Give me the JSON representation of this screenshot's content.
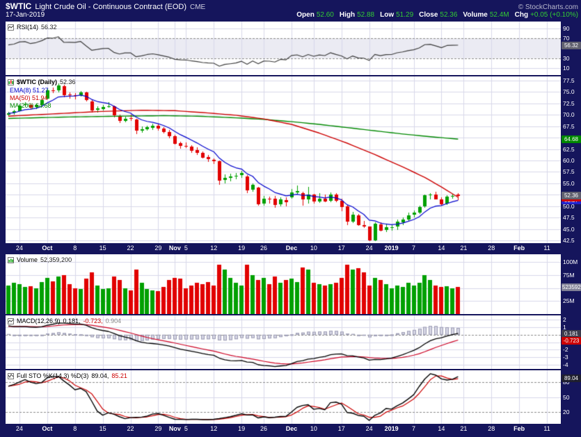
{
  "header": {
    "symbol": "$WTIC",
    "title": "Light Crude Oil - Continuous Contract (EOD)",
    "exchange": "CME",
    "copyright": "© StockCharts.com",
    "date": "17-Jan-2019",
    "quote": {
      "open_label": "Open",
      "open": "52.60",
      "high_label": "High",
      "high": "52.88",
      "low_label": "Low",
      "low": "51.29",
      "close_label": "Close",
      "close": "52.36",
      "volume_label": "Volume",
      "volume": "52.4M",
      "chg_label": "Chg",
      "chg": "+0.05 (+0.10%)"
    }
  },
  "legends": {
    "rsi": {
      "name": "RSI(14)",
      "value": "56.32"
    },
    "price": {
      "symbol": "$WTIC (Daily)",
      "value": "52.36",
      "ema": "EMA(8) 51.27",
      "ma50": "MA(50) 51.94",
      "ma200": "MA(200) 64.68"
    },
    "volume": {
      "name": "Volume",
      "value": "52,359,200"
    },
    "macd": {
      "name": "MACD(12,26,9)",
      "v1": "0.181,",
      "v2": "-0.723,",
      "v3": "0.904"
    },
    "stoch": {
      "name": "Full STO %K(14,3) %D(3)",
      "v1": "89.04,",
      "v2": "85.21"
    }
  },
  "chart_data": {
    "type": "candlestick-multi-panel",
    "title": "$WTIC Light Crude Oil - Continuous Contract (EOD) CME",
    "x_slots": 100,
    "x_ticks": [
      {
        "i": 2,
        "label": "24"
      },
      {
        "i": 7,
        "label": "Oct",
        "bold": true
      },
      {
        "i": 12,
        "label": "8"
      },
      {
        "i": 17,
        "label": "15"
      },
      {
        "i": 22,
        "label": "22"
      },
      {
        "i": 27,
        "label": "29"
      },
      {
        "i": 30,
        "label": "Nov",
        "bold": true
      },
      {
        "i": 32,
        "label": "5"
      },
      {
        "i": 37,
        "label": "12"
      },
      {
        "i": 42,
        "label": "19"
      },
      {
        "i": 46,
        "label": "26"
      },
      {
        "i": 51,
        "label": "Dec",
        "bold": true
      },
      {
        "i": 55,
        "label": "10"
      },
      {
        "i": 60,
        "label": "17"
      },
      {
        "i": 65,
        "label": "24"
      },
      {
        "i": 69,
        "label": "2019",
        "bold": true
      },
      {
        "i": 73,
        "label": "7"
      },
      {
        "i": 78,
        "label": "14"
      },
      {
        "i": 82,
        "label": "21"
      },
      {
        "i": 87,
        "label": "28"
      },
      {
        "i": 92,
        "label": "Feb",
        "bold": true
      },
      {
        "i": 97,
        "label": "11"
      }
    ],
    "panels": {
      "rsi": {
        "range": [
          0,
          100
        ],
        "pad": 3,
        "solid": [
          90,
          10
        ],
        "dashed": [
          70,
          30
        ],
        "band": [
          30,
          70
        ],
        "axis_v": [
          90,
          70,
          30,
          10
        ],
        "axis": [
          "90",
          "70",
          "30",
          "10"
        ],
        "boxes": [
          {
            "v": 56.32,
            "text": "56.32",
            "bg": "#5f5f6e"
          }
        ],
        "seed": {
          "gain": 0.5,
          "loss": 0.38
        },
        "period": 14
      },
      "price": {
        "range": [
          41.9,
          78.4
        ],
        "grid_min": 42.5,
        "grid_step": 2.5,
        "grid_count": 15,
        "boxes": [
          {
            "v": 51.27,
            "text": "51.27",
            "bg": "#2222cc"
          },
          {
            "v": 51.94,
            "text": "51.94",
            "bg": "#cc0000"
          },
          {
            "v": 64.68,
            "text": "64.68",
            "bg": "#008800"
          },
          {
            "v": 52.36,
            "text": "52.36",
            "bg": "#5f5f6e"
          }
        ]
      },
      "volume": {
        "range": [
          0,
          115
        ],
        "solid": [
          100,
          75,
          50,
          25
        ],
        "axis_v": [
          100,
          75,
          50,
          25
        ],
        "axis": [
          "100M",
          "75M",
          "50M",
          "25M"
        ],
        "boxes": [
          {
            "v": 52.36,
            "text": "52359200",
            "bg": "#808096"
          }
        ]
      },
      "macd": {
        "range": [
          -4.6,
          2.6
        ],
        "solid": [
          2,
          1,
          -1,
          -2,
          -3,
          -4
        ],
        "dashed": [
          0
        ],
        "axis_v": [
          2,
          1,
          0,
          -1,
          -2,
          -3,
          -4
        ],
        "axis": [
          "2",
          "1",
          "0",
          "-1",
          "-2",
          "-3",
          "-4"
        ],
        "boxes": [
          {
            "v": 0.181,
            "text": "0.181",
            "bg": "#3c3c4c"
          },
          {
            "v": -0.723,
            "text": "-0.723",
            "bg": "#cc0000"
          }
        ],
        "params": {
          "fast": 12,
          "slow": 26,
          "signal": 9,
          "seed_fast": 71.3,
          "seed_slow": 69.9,
          "seed_signal": 1.1
        }
      },
      "stoch": {
        "range": [
          -4,
          104
        ],
        "solid": [
          50
        ],
        "dashed": [
          80,
          20
        ],
        "axis_v": [
          80,
          50,
          20
        ],
        "axis": [
          "80",
          "50",
          "20"
        ],
        "boxes": [
          {
            "v": 89.04,
            "text": "89.04",
            "bg": "#1f1f2f"
          }
        ],
        "params": {
          "k": 14,
          "k_smooth": 3,
          "d": 3
        }
      }
    },
    "overlays": {
      "ema_period": 8,
      "ma50_keypoints": [
        [
          0,
          69.7
        ],
        [
          8,
          70.2
        ],
        [
          16,
          70.7
        ],
        [
          24,
          71.0
        ],
        [
          30,
          70.9
        ],
        [
          36,
          70.4
        ],
        [
          41,
          69.9
        ],
        [
          46,
          69.1
        ],
        [
          51,
          67.9
        ],
        [
          56,
          66.0
        ],
        [
          61,
          63.8
        ],
        [
          66,
          61.3
        ],
        [
          71,
          58.6
        ],
        [
          75,
          56.3
        ],
        [
          78,
          54.2
        ],
        [
          81,
          51.94
        ]
      ],
      "ma200_keypoints": [
        [
          0,
          69.2
        ],
        [
          10,
          69.5
        ],
        [
          20,
          69.7
        ],
        [
          28,
          69.8
        ],
        [
          34,
          69.7
        ],
        [
          40,
          69.4
        ],
        [
          46,
          69.0
        ],
        [
          51,
          68.5
        ],
        [
          56,
          67.9
        ],
        [
          61,
          67.2
        ],
        [
          66,
          66.5
        ],
        [
          71,
          65.8
        ],
        [
          76,
          65.2
        ],
        [
          81,
          64.68
        ]
      ]
    },
    "colors": {
      "up": "#00a000",
      "down": "#e10000",
      "ema8": "#0000cc",
      "ma50": "#cc0000",
      "ma200": "#008800",
      "rsi": "#3c3c3c",
      "macd": "#000000",
      "signal": "#cc0022",
      "hist_fill": "#d6d6e4",
      "hist_stroke": "#9a9ab2",
      "grid": "#d7d7e9",
      "dash": "#888888",
      "band": "#ebebf3",
      "k_line": "#000000",
      "d_line": "#cc0000"
    },
    "candles": [
      [
        "2018-09-20",
        70.0,
        70.6,
        69.6,
        70.32,
        55
      ],
      [
        "2018-09-21",
        70.4,
        71.1,
        70.1,
        70.78,
        60
      ],
      [
        "2018-09-24",
        70.9,
        72.35,
        70.8,
        72.08,
        58
      ],
      [
        "2018-09-25",
        72.1,
        72.7,
        71.8,
        72.28,
        52
      ],
      [
        "2018-09-26",
        72.2,
        72.5,
        71.2,
        71.57,
        54
      ],
      [
        "2018-09-27",
        71.6,
        72.5,
        71.3,
        72.12,
        50
      ],
      [
        "2018-09-28",
        72.2,
        73.53,
        71.9,
        73.25,
        62
      ],
      [
        "2018-10-01",
        73.4,
        75.77,
        73.3,
        75.3,
        70
      ],
      [
        "2018-10-02",
        75.4,
        75.91,
        74.7,
        75.23,
        63
      ],
      [
        "2018-10-03",
        75.3,
        76.9,
        74.9,
        76.41,
        72
      ],
      [
        "2018-10-04",
        76.3,
        76.55,
        73.85,
        74.33,
        75
      ],
      [
        "2018-10-05",
        74.4,
        74.95,
        73.6,
        74.34,
        58
      ],
      [
        "2018-10-08",
        74.3,
        74.8,
        73.4,
        74.29,
        50
      ],
      [
        "2018-10-09",
        74.4,
        75.26,
        74.1,
        74.96,
        48
      ],
      [
        "2018-10-10",
        74.9,
        75.0,
        72.9,
        73.17,
        68
      ],
      [
        "2018-10-11",
        73.0,
        73.3,
        70.51,
        70.97,
        80
      ],
      [
        "2018-10-12",
        71.1,
        71.9,
        70.6,
        71.34,
        55
      ],
      [
        "2018-10-15",
        71.3,
        72.1,
        70.9,
        71.78,
        48
      ],
      [
        "2018-10-16",
        71.9,
        72.7,
        71.5,
        71.92,
        50
      ],
      [
        "2018-10-17",
        71.8,
        72.0,
        69.42,
        69.75,
        72
      ],
      [
        "2018-10-18",
        69.7,
        70.1,
        68.25,
        68.65,
        65
      ],
      [
        "2018-10-19",
        68.7,
        69.6,
        68.4,
        69.12,
        50
      ],
      [
        "2018-10-22",
        69.2,
        69.97,
        68.6,
        69.17,
        45
      ],
      [
        "2018-10-23",
        68.9,
        69.1,
        65.74,
        66.43,
        85
      ],
      [
        "2018-10-24",
        66.5,
        67.4,
        66.1,
        66.82,
        60
      ],
      [
        "2018-10-25",
        66.9,
        67.6,
        66.5,
        67.33,
        48
      ],
      [
        "2018-10-26",
        67.2,
        68.1,
        66.8,
        67.59,
        46
      ],
      [
        "2018-10-29",
        67.6,
        68.0,
        66.5,
        67.04,
        44
      ],
      [
        "2018-10-30",
        67.0,
        67.3,
        65.9,
        66.18,
        52
      ],
      [
        "2018-10-31",
        66.2,
        66.7,
        64.8,
        65.31,
        66
      ],
      [
        "2018-11-01",
        65.3,
        65.6,
        63.4,
        63.69,
        70
      ],
      [
        "2018-11-02",
        63.8,
        64.1,
        62.6,
        63.14,
        68
      ],
      [
        "2018-11-05",
        63.2,
        64.0,
        62.8,
        63.1,
        50
      ],
      [
        "2018-11-06",
        63.1,
        63.4,
        61.8,
        62.21,
        55
      ],
      [
        "2018-11-07",
        62.3,
        62.9,
        61.2,
        61.67,
        60
      ],
      [
        "2018-11-08",
        61.7,
        61.9,
        60.4,
        60.67,
        58
      ],
      [
        "2018-11-09",
        60.7,
        61.2,
        59.7,
        60.19,
        62
      ],
      [
        "2018-11-12",
        60.2,
        60.5,
        59.3,
        59.93,
        55
      ],
      [
        "2018-11-13",
        59.9,
        60.0,
        54.75,
        55.69,
        95
      ],
      [
        "2018-11-14",
        55.8,
        56.9,
        54.9,
        56.25,
        85
      ],
      [
        "2018-11-15",
        56.2,
        57.1,
        55.4,
        56.46,
        70
      ],
      [
        "2018-11-16",
        56.5,
        57.3,
        55.9,
        56.68,
        60
      ],
      [
        "2018-11-19",
        56.8,
        57.77,
        56.3,
        57.2,
        55
      ],
      [
        "2018-11-20",
        56.5,
        56.8,
        52.77,
        53.43,
        95
      ],
      [
        "2018-11-21",
        53.5,
        55.0,
        53.1,
        54.63,
        75
      ],
      [
        "2018-11-23",
        54.0,
        54.2,
        50.15,
        50.42,
        65
      ],
      [
        "2018-11-26",
        50.6,
        52.3,
        50.1,
        51.63,
        70
      ],
      [
        "2018-11-27",
        51.6,
        52.1,
        50.6,
        51.56,
        58
      ],
      [
        "2018-11-28",
        51.6,
        52.2,
        49.65,
        50.29,
        72
      ],
      [
        "2018-11-29",
        50.4,
        52.0,
        50.0,
        51.45,
        60
      ],
      [
        "2018-11-30",
        51.4,
        51.9,
        49.95,
        50.93,
        65
      ],
      [
        "2018-12-03",
        51.9,
        53.8,
        51.6,
        52.95,
        68
      ],
      [
        "2018-12-04",
        53.0,
        54.55,
        52.6,
        53.25,
        62
      ],
      [
        "2018-12-06",
        52.8,
        53.1,
        50.08,
        51.49,
        90
      ],
      [
        "2018-12-07",
        51.6,
        54.22,
        50.6,
        52.61,
        85
      ],
      [
        "2018-12-10",
        52.5,
        52.7,
        50.6,
        51.0,
        60
      ],
      [
        "2018-12-11",
        51.1,
        52.88,
        50.7,
        51.65,
        58
      ],
      [
        "2018-12-12",
        51.7,
        52.5,
        50.9,
        51.15,
        55
      ],
      [
        "2018-12-13",
        51.2,
        53.0,
        50.9,
        52.58,
        57
      ],
      [
        "2018-12-14",
        52.5,
        52.9,
        50.97,
        51.2,
        60
      ],
      [
        "2018-12-17",
        51.2,
        51.7,
        49.01,
        49.88,
        70
      ],
      [
        "2018-12-18",
        49.9,
        50.2,
        45.79,
        46.6,
        95
      ],
      [
        "2018-12-19",
        46.7,
        48.7,
        46.3,
        48.17,
        85
      ],
      [
        "2018-12-20",
        48.0,
        48.3,
        45.67,
        45.88,
        88
      ],
      [
        "2018-12-21",
        45.9,
        46.7,
        45.13,
        45.59,
        80
      ],
      [
        "2018-12-24",
        45.5,
        45.6,
        42.36,
        42.53,
        55
      ],
      [
        "2018-12-26",
        42.6,
        46.4,
        42.3,
        46.22,
        70
      ],
      [
        "2018-12-27",
        46.0,
        46.4,
        44.35,
        44.61,
        65
      ],
      [
        "2018-12-28",
        44.7,
        46.2,
        44.4,
        45.33,
        58
      ],
      [
        "2018-12-31",
        45.3,
        45.9,
        44.7,
        45.41,
        50
      ],
      [
        "2019-01-02",
        45.4,
        47.1,
        44.75,
        46.54,
        55
      ],
      [
        "2019-01-03",
        46.5,
        47.5,
        45.9,
        47.09,
        52
      ],
      [
        "2019-01-04",
        47.1,
        48.6,
        46.7,
        47.96,
        60
      ],
      [
        "2019-01-07",
        48.0,
        49.1,
        47.6,
        48.52,
        55
      ],
      [
        "2019-01-08",
        48.6,
        50.1,
        48.3,
        49.78,
        60
      ],
      [
        "2019-01-09",
        49.9,
        52.5,
        49.6,
        52.36,
        75
      ],
      [
        "2019-01-10",
        52.4,
        52.8,
        51.4,
        52.59,
        65
      ],
      [
        "2019-01-11",
        52.6,
        53.1,
        51.6,
        51.59,
        55
      ],
      [
        "2019-01-14",
        51.5,
        51.9,
        50.02,
        50.51,
        52
      ],
      [
        "2019-01-15",
        50.6,
        52.4,
        50.3,
        52.11,
        54
      ],
      [
        "2019-01-16",
        52.2,
        52.7,
        51.6,
        52.31,
        50
      ],
      [
        "2019-01-17",
        52.6,
        52.88,
        51.29,
        52.36,
        52.3592
      ]
    ]
  }
}
